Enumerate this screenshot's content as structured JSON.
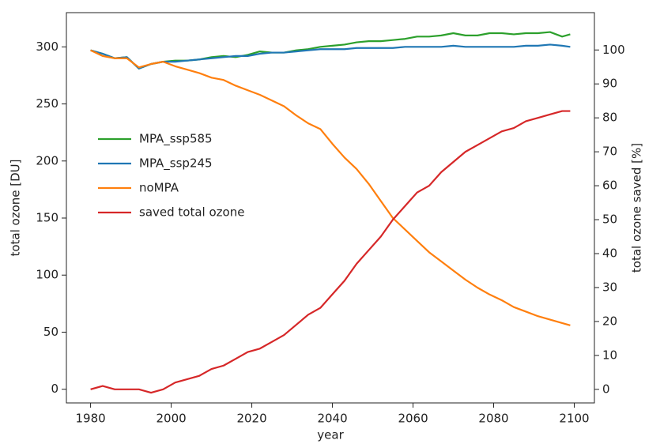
{
  "chart_data": {
    "type": "line",
    "xlabel": "year",
    "ylabel": "total ozone [DU]",
    "y2label": "total ozone saved [%]",
    "x": [
      1980,
      1983,
      1986,
      1989,
      1992,
      1995,
      1998,
      2001,
      2004,
      2007,
      2010,
      2013,
      2016,
      2019,
      2022,
      2025,
      2028,
      2031,
      2034,
      2037,
      2040,
      2043,
      2046,
      2049,
      2052,
      2055,
      2058,
      2061,
      2064,
      2067,
      2070,
      2073,
      2076,
      2079,
      2082,
      2085,
      2088,
      2091,
      2094,
      2097,
      2099
    ],
    "series": [
      {
        "name": "MPA_ssp585",
        "color": "#2ca02c",
        "values": [
          297,
          294,
          290,
          291,
          281,
          285,
          287,
          288,
          288,
          289,
          291,
          292,
          291,
          293,
          296,
          295,
          295,
          297,
          298,
          300,
          301,
          302,
          304,
          305,
          305,
          306,
          307,
          309,
          309,
          310,
          312,
          310,
          310,
          312,
          312,
          311,
          312,
          312,
          313,
          309,
          311
        ]
      },
      {
        "name": "MPA_ssp245",
        "color": "#1f77b4",
        "values": [
          297,
          294,
          290,
          291,
          281,
          285,
          287,
          287,
          288,
          289,
          290,
          291,
          292,
          292,
          294,
          295,
          295,
          296,
          297,
          298,
          298,
          298,
          299,
          299,
          299,
          299,
          300,
          300,
          300,
          300,
          301,
          300,
          300,
          300,
          300,
          300,
          301,
          301,
          302,
          301,
          300
        ]
      },
      {
        "name": "noMPA",
        "color": "#ff7f0e",
        "values": [
          297,
          292,
          290,
          290,
          282,
          285,
          287,
          283,
          280,
          277,
          273,
          271,
          266,
          262,
          258,
          253,
          248,
          240,
          233,
          228,
          215,
          203,
          193,
          180,
          165,
          150,
          140,
          130,
          120,
          112,
          104,
          96,
          89,
          83,
          78,
          72,
          68,
          64,
          61,
          58,
          56
        ]
      },
      {
        "name": "saved total ozone",
        "color": "#d62728",
        "axis": "y2",
        "values": [
          0,
          1,
          0,
          0,
          0,
          -1,
          0,
          2,
          3,
          4,
          6,
          7,
          9,
          11,
          12,
          14,
          16,
          19,
          22,
          24,
          28,
          32,
          37,
          41,
          45,
          50,
          54,
          58,
          60,
          64,
          67,
          70,
          72,
          74,
          76,
          77,
          79,
          80,
          81,
          82,
          82
        ]
      }
    ],
    "xlim": [
      1974,
      2105
    ],
    "xticks": [
      1980,
      2000,
      2020,
      2040,
      2060,
      2080,
      2100
    ],
    "ylim": [
      -12,
      330
    ],
    "yticks": [
      0,
      50,
      100,
      150,
      200,
      250,
      300
    ],
    "y2lim": [
      -4,
      111
    ],
    "y2ticks": [
      0,
      10,
      20,
      30,
      40,
      50,
      60,
      70,
      80,
      90,
      100
    ],
    "legend": "center left"
  }
}
